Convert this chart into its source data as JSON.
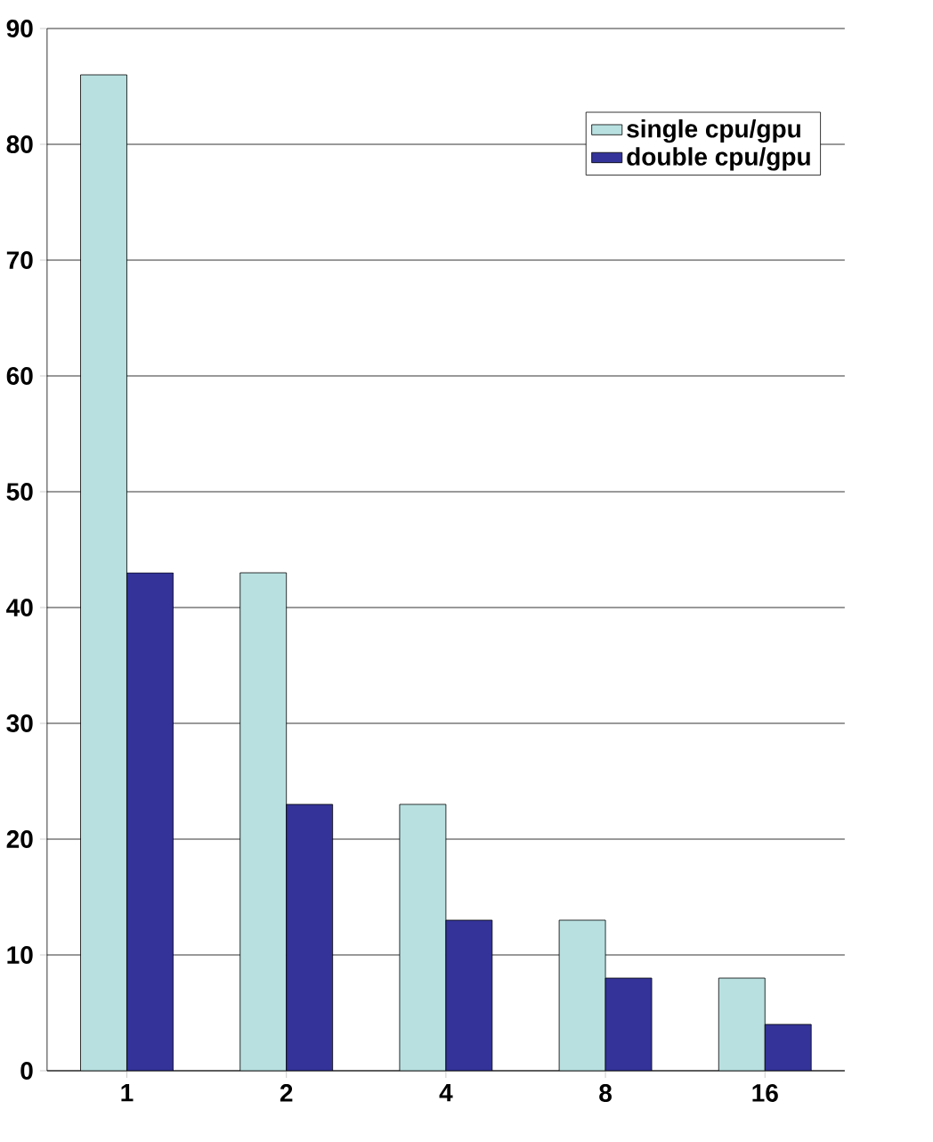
{
  "chart_data": {
    "type": "bar",
    "categories": [
      "1",
      "2",
      "4",
      "8",
      "16"
    ],
    "series": [
      {
        "name": "single cpu/gpu",
        "color": "#b8e0e0",
        "values": [
          86,
          43,
          23,
          13,
          8
        ]
      },
      {
        "name": "double cpu/gpu",
        "color": "#333399",
        "values": [
          43,
          23,
          13,
          8,
          4
        ]
      }
    ],
    "ylim": [
      0,
      90
    ],
    "yticks": [
      0,
      10,
      20,
      30,
      40,
      50,
      60,
      70,
      80,
      90
    ],
    "grid": "y",
    "legend": "top right"
  }
}
